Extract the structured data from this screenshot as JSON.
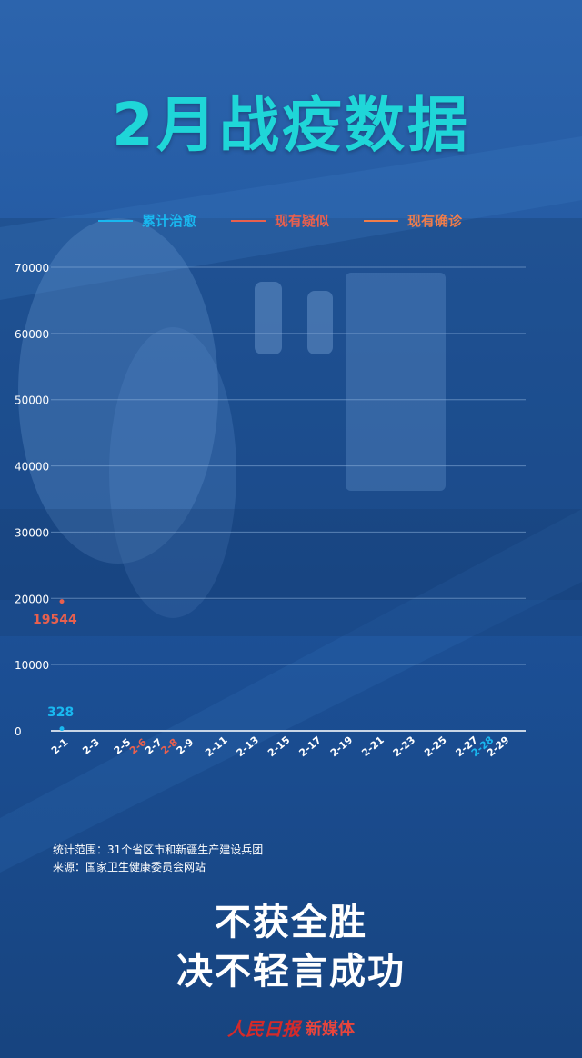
{
  "title": "2月战疫数据",
  "legend": [
    {
      "label": "累计治愈",
      "color": "#19b8f0"
    },
    {
      "label": "现有疑似",
      "color": "#e8604e"
    },
    {
      "label": "现有确诊",
      "color": "#f07d4a"
    }
  ],
  "chart_data": {
    "type": "line",
    "ylim": [
      0,
      70000
    ],
    "y_ticks": [
      "70000",
      "60000",
      "50000",
      "40000",
      "30000",
      "20000",
      "10000",
      "0"
    ],
    "x_ticks": [
      "2-1",
      "2-3",
      "2-5",
      "2-6",
      "2-7",
      "2-8",
      "2-9",
      "2-11",
      "2-13",
      "2-15",
      "2-17",
      "2-19",
      "2-21",
      "2-23",
      "2-25",
      "2-27",
      "2-28",
      "2-29"
    ],
    "x_tick_colors": {
      "2-6": "#e8604e",
      "2-8": "#e8604e",
      "2-28": "#19b8f0"
    },
    "series": [
      {
        "name": "累计治愈",
        "color": "#19b8f0",
        "points": [
          {
            "x": "2-1",
            "y": 328
          }
        ]
      },
      {
        "name": "现有疑似",
        "color": "#e8604e",
        "points": [
          {
            "x": "2-1",
            "y": 19544
          }
        ]
      }
    ],
    "data_labels": [
      {
        "text": "19544",
        "color": "#e8604e"
      },
      {
        "text": "328",
        "color": "#19b8f0"
      }
    ]
  },
  "footer": {
    "scope": "统计范围：31个省区市和新疆生产建设兵团",
    "source": "来源：国家卫生健康委员会网站"
  },
  "slogan": {
    "line1": "不获全胜",
    "line2": "决不轻言成功"
  },
  "brand": {
    "logo": "人民日报",
    "text": "新媒体"
  }
}
